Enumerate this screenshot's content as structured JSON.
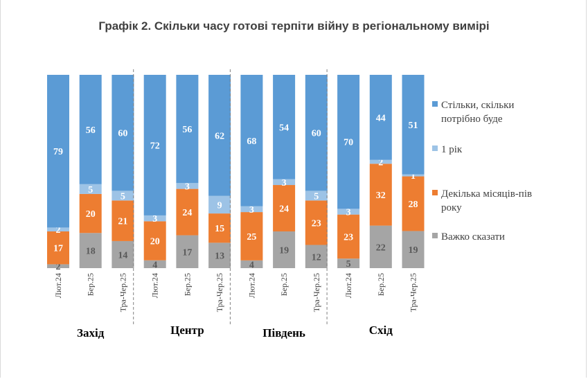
{
  "chart_data": {
    "type": "bar",
    "stacked": true,
    "title": "Графік 2. Скільки часу готові терпіти війну в регіональному вимірі",
    "groups": [
      "Захід",
      "Центр",
      "Південь",
      "Схід"
    ],
    "categories": [
      "Лют.24",
      "Бер.25",
      "Тра-Чер.25"
    ],
    "series": [
      {
        "name": "Важко сказати",
        "color": "#a5a5a5",
        "label_color": "#595959",
        "values": [
          [
            2,
            18,
            14
          ],
          [
            4,
            17,
            13
          ],
          [
            4,
            19,
            12
          ],
          [
            5,
            22,
            19
          ]
        ]
      },
      {
        "name": "Декілька місяців-пів року",
        "color": "#ed7d31",
        "label_color": "#ffffff",
        "values": [
          [
            17,
            20,
            21
          ],
          [
            20,
            24,
            15
          ],
          [
            25,
            24,
            23
          ],
          [
            23,
            32,
            28
          ]
        ]
      },
      {
        "name": "1 рік",
        "color": "#9dc3e6",
        "label_color": "#ffffff",
        "values": [
          [
            2,
            5,
            5
          ],
          [
            3,
            3,
            9
          ],
          [
            3,
            3,
            5
          ],
          [
            3,
            2,
            1
          ]
        ]
      },
      {
        "name": "Стільки, скільки потрібно буде",
        "color": "#5b9bd5",
        "label_color": "#ffffff",
        "values": [
          [
            79,
            56,
            60
          ],
          [
            72,
            56,
            62
          ],
          [
            68,
            54,
            60
          ],
          [
            70,
            44,
            51
          ]
        ]
      }
    ],
    "legend_order": [
      {
        "lines": [
          "Стільки, скільки",
          "потрібно буде"
        ],
        "color": "#5b9bd5"
      },
      {
        "lines": [
          "1 рік"
        ],
        "color": "#9dc3e6"
      },
      {
        "lines": [
          "Декілька місяців-пів",
          "року"
        ],
        "color": "#ed7d31"
      },
      {
        "lines": [
          "Важко сказати"
        ],
        "color": "#a5a5a5"
      }
    ],
    "ylim": [
      0,
      100
    ],
    "legend_position": "right"
  }
}
